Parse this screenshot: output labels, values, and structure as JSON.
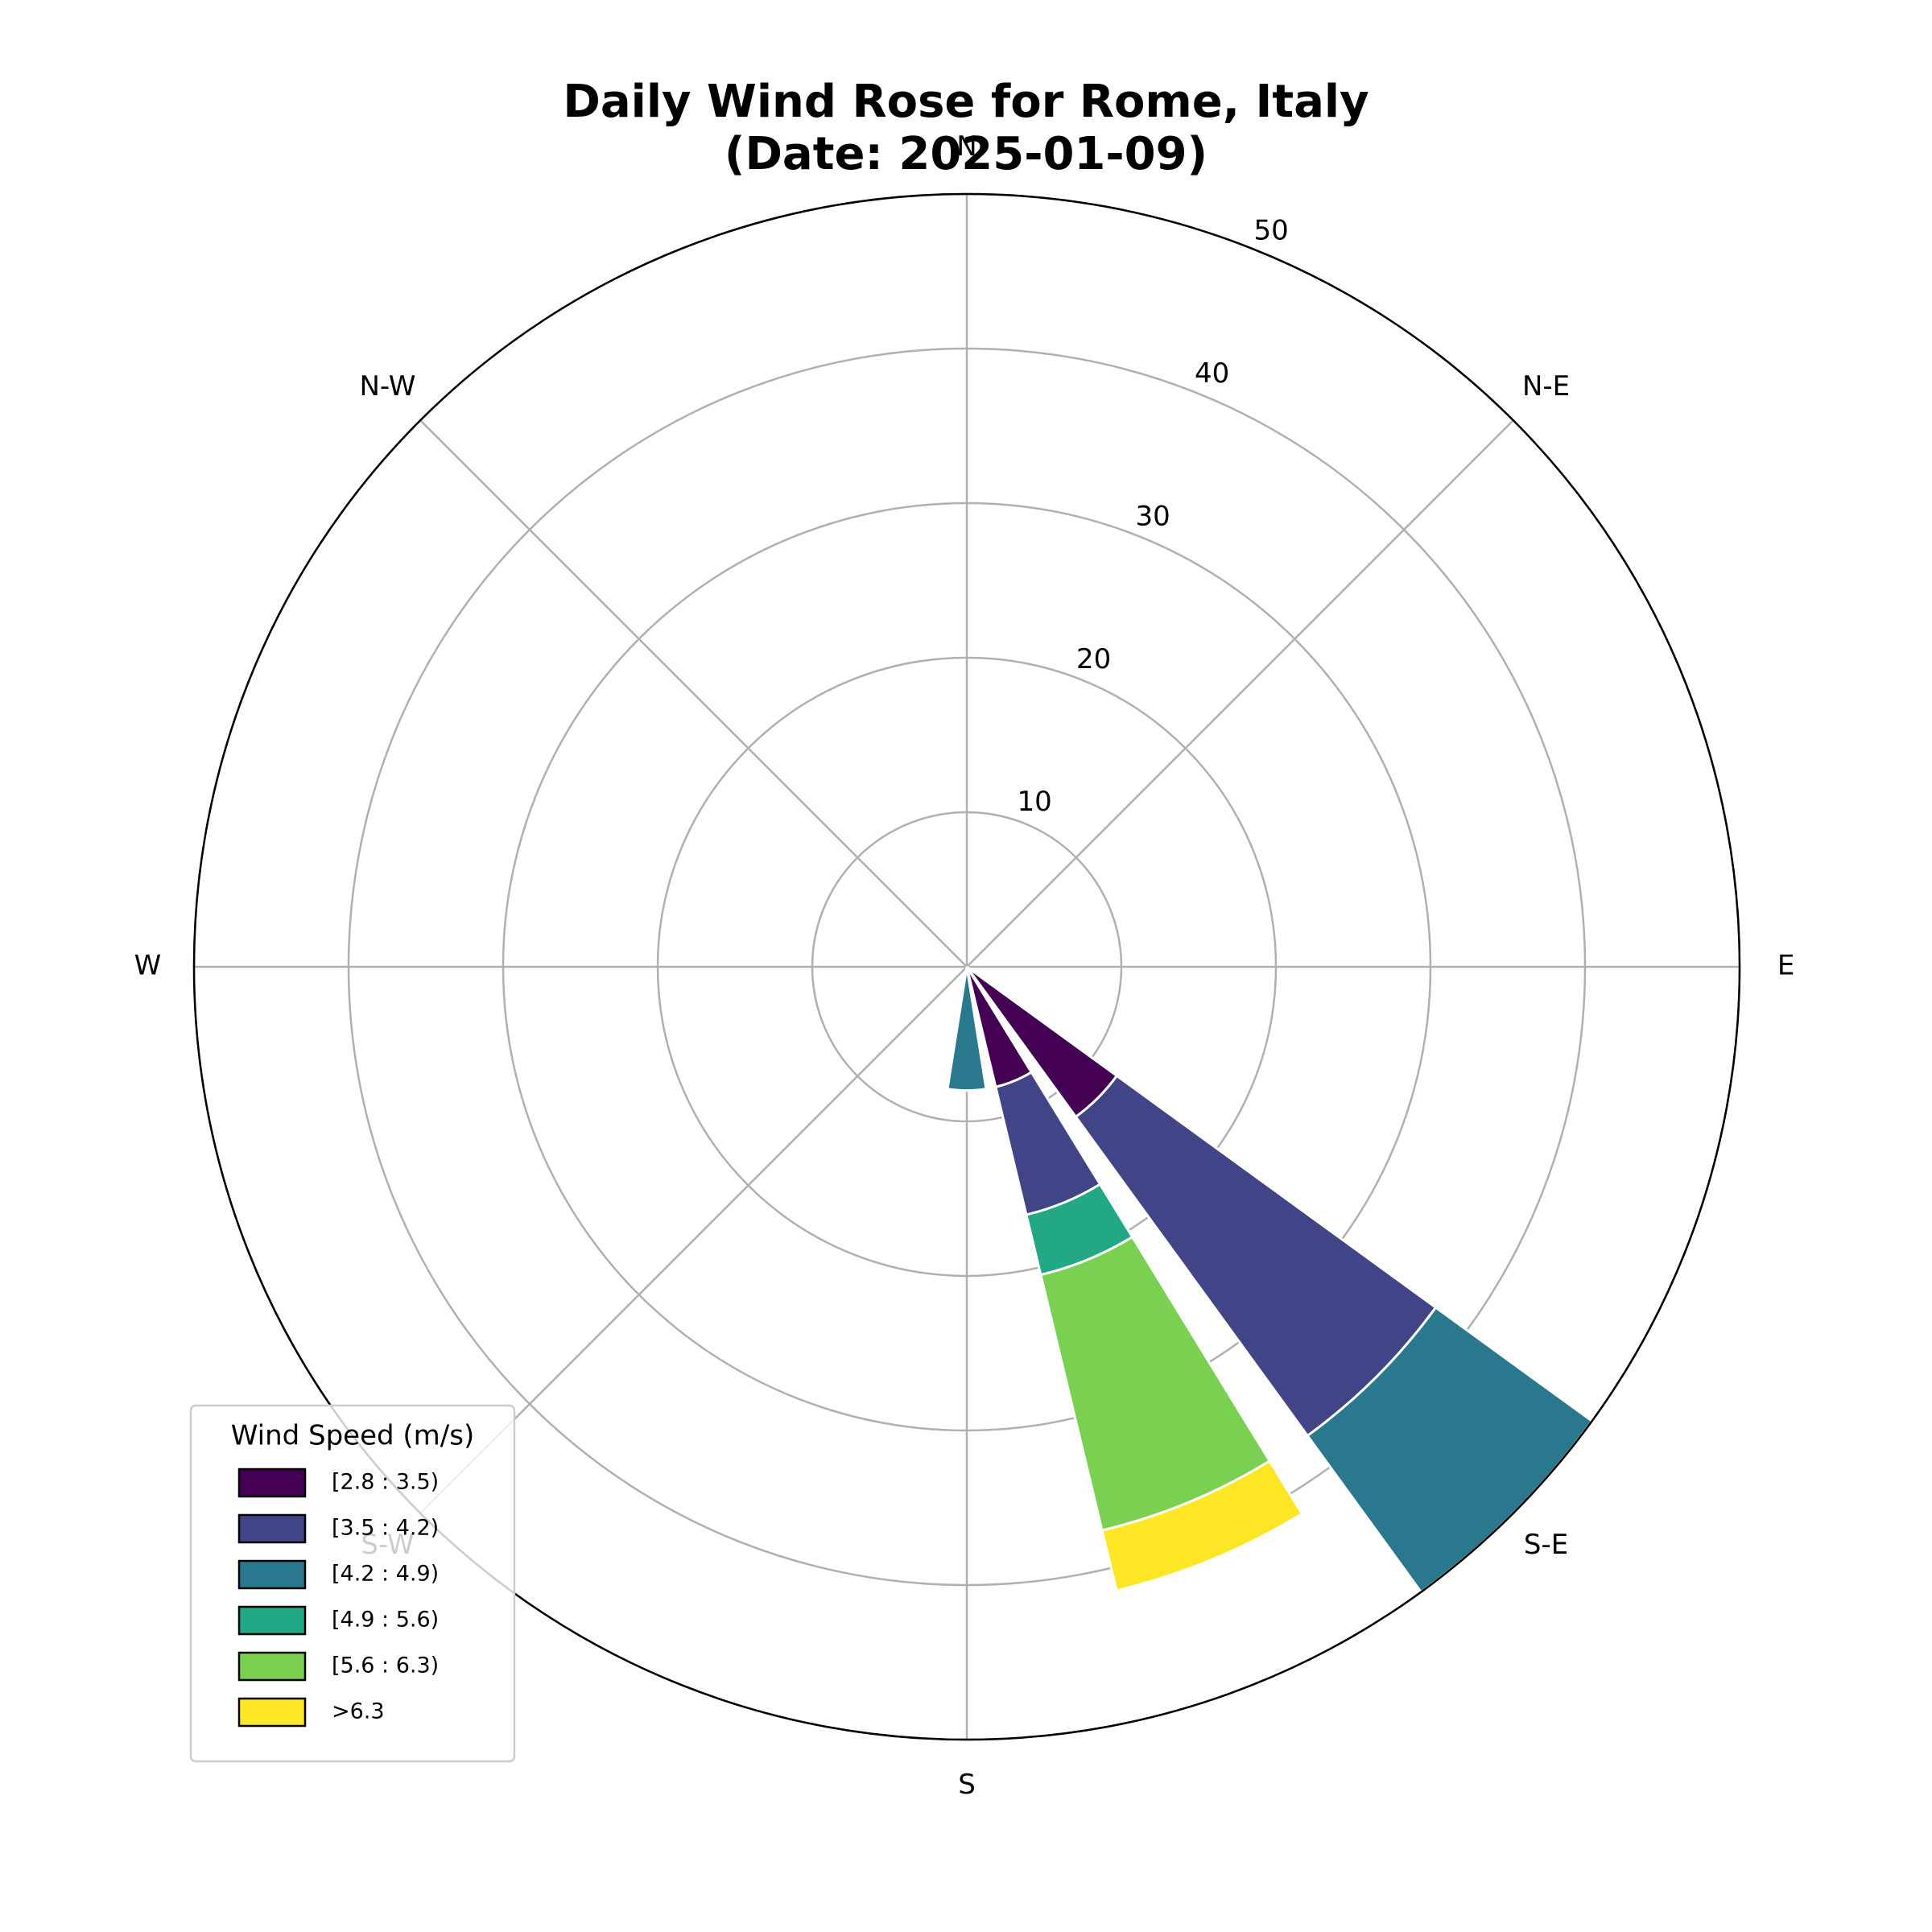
{
  "chart_data": {
    "type": "windrose",
    "title": "Daily Wind Rose for Rome, Italy",
    "subtitle": "(Date: 2025-01-09)",
    "x": [
      135,
      157.5,
      180
    ],
    "xticks": [
      {
        "value": 0,
        "label": "N"
      },
      {
        "value": 45,
        "label": "N-E"
      },
      {
        "value": 90,
        "label": "E"
      },
      {
        "value": 135,
        "label": "S-E"
      },
      {
        "value": 180,
        "label": "S"
      },
      {
        "value": 225,
        "label": "S-W"
      },
      {
        "value": 270,
        "label": "W"
      },
      {
        "value": 315,
        "label": "N-W"
      }
    ],
    "ylim": [
      0,
      50
    ],
    "yticks": [
      10,
      20,
      30,
      40,
      50
    ],
    "grid": true,
    "legend_title": "Wind Speed (m/s)",
    "legend_position": "lower left",
    "series": [
      {
        "name": "[2.8 : 3.5)",
        "color": "#440154",
        "values": [
          12,
          8,
          0
        ]
      },
      {
        "name": "[3.5 : 4.2)",
        "color": "#414487",
        "values": [
          25.5,
          8.5,
          0
        ]
      },
      {
        "name": "[4.2 : 4.9)",
        "color": "#2a788e",
        "values": [
          12.5,
          0,
          8
        ]
      },
      {
        "name": "[4.9 : 5.6)",
        "color": "#22a884",
        "values": [
          0,
          4,
          0
        ]
      },
      {
        "name": "[5.6 : 6.3)",
        "color": "#7ad151",
        "values": [
          0,
          17,
          0
        ]
      },
      {
        "name": ">6.3",
        "color": "#fde725",
        "values": [
          0,
          4,
          0
        ]
      }
    ]
  }
}
